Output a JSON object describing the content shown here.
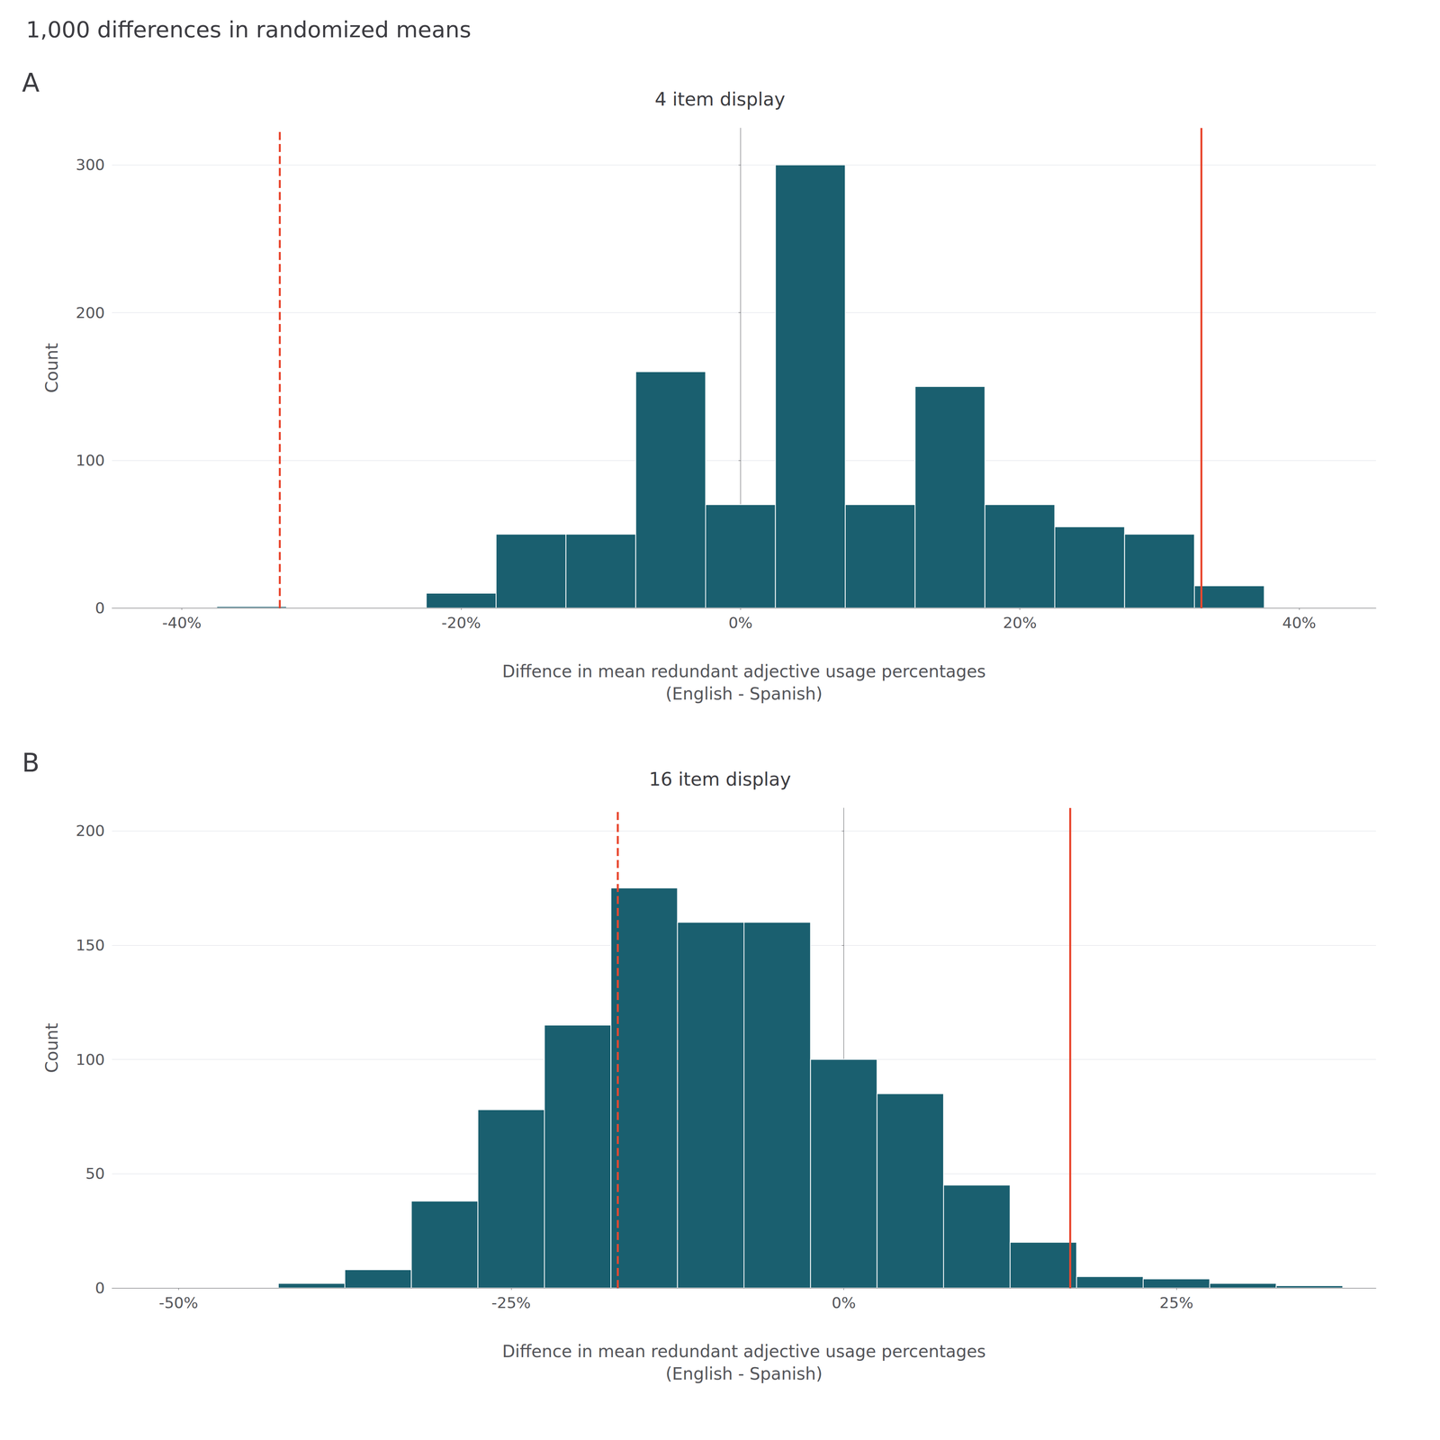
{
  "title": "1,000 differences in randomized means",
  "chart_data": [
    {
      "type": "histogram",
      "panel_label": "A",
      "title": "4 item display",
      "xlabel": "Diffence in mean redundant adjective usage percentages\n(English - Spanish)",
      "ylabel": "Count",
      "xlim": [
        -0.45,
        0.455
      ],
      "ylim": [
        0,
        325
      ],
      "xticks": [
        {
          "value": -0.4,
          "label": "-40%"
        },
        {
          "value": -0.2,
          "label": "-20%"
        },
        {
          "value": 0.0,
          "label": "0%"
        },
        {
          "value": 0.2,
          "label": "20%"
        },
        {
          "value": 0.4,
          "label": "40%"
        }
      ],
      "yticks": [
        0,
        100,
        200,
        300
      ],
      "bins": [
        -0.425,
        -0.375,
        -0.325,
        -0.275,
        -0.225,
        -0.175,
        -0.125,
        -0.075,
        -0.025,
        0.025,
        0.075,
        0.125,
        0.175,
        0.225,
        0.275,
        0.325,
        0.375,
        0.425
      ],
      "values": [
        0,
        1,
        0,
        0,
        10,
        50,
        50,
        160,
        70,
        300,
        70,
        150,
        70,
        55,
        50,
        15,
        0
      ],
      "color": "#1a5f6f",
      "grid": true,
      "vlines": [
        {
          "x": 0.333,
          "line_style": "solid",
          "color": "#e84830"
        },
        {
          "x": -0.333,
          "line_style": "dashed",
          "color": "#e84830"
        }
      ]
    },
    {
      "type": "histogram",
      "panel_label": "B",
      "title": "16 item display",
      "xlabel": "Diffence in mean redundant adjective usage percentages\n(English - Spanish)",
      "ylabel": "Count",
      "xlim": [
        -0.55,
        0.4
      ],
      "ylim": [
        0,
        210
      ],
      "xticks": [
        {
          "value": -0.5,
          "label": "-50%"
        },
        {
          "value": -0.25,
          "label": "-25%"
        },
        {
          "value": 0.0,
          "label": "0%"
        },
        {
          "value": 0.25,
          "label": "25%"
        }
      ],
      "yticks": [
        0,
        50,
        100,
        150,
        200
      ],
      "bins": [
        -0.475,
        -0.425,
        -0.375,
        -0.325,
        -0.275,
        -0.225,
        -0.175,
        -0.125,
        -0.075,
        -0.025,
        0.025,
        0.075,
        0.125,
        0.175,
        0.225,
        0.275,
        0.325,
        0.375
      ],
      "values": [
        0,
        2,
        8,
        38,
        78,
        115,
        175,
        160,
        160,
        100,
        85,
        45,
        20,
        5,
        4,
        2,
        1
      ],
      "color": "#1a5f6f",
      "grid": true,
      "vlines": [
        {
          "x": 0.175,
          "line_style": "solid",
          "color": "#e84830"
        },
        {
          "x": -0.175,
          "line_style": "dashed",
          "color": "#e84830"
        }
      ]
    }
  ]
}
